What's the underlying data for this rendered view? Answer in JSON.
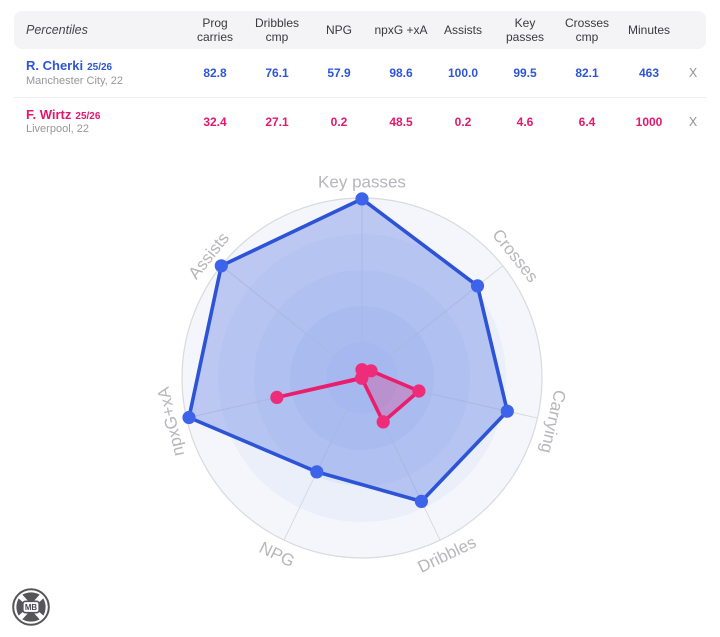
{
  "table": {
    "header": {
      "title": "Percentiles",
      "columns": [
        "Prog carries",
        "Dribbles cmp",
        "NPG",
        "npxG +xA",
        "Assists",
        "Key passes",
        "Crosses cmp",
        "Minutes"
      ]
    },
    "rows": [
      {
        "name": "R. Cherki",
        "season": "25/26",
        "club": "Manchester City, 22",
        "color": "#2e55d7",
        "values": [
          "82.8",
          "76.1",
          "57.9",
          "98.6",
          "100.0",
          "99.5",
          "82.1",
          "463"
        ],
        "remove_label": "X"
      },
      {
        "name": "F. Wirtz",
        "season": "25/26",
        "club": "Liverpool, 22",
        "color": "#e2186f",
        "values": [
          "32.4",
          "27.1",
          "0.2",
          "48.5",
          "0.2",
          "4.6",
          "6.4",
          "1000"
        ],
        "remove_label": "X"
      }
    ]
  },
  "chart_data": {
    "type": "radar",
    "title": "Percentiles radar comparison",
    "categories": [
      "Key passes",
      "Crosses",
      "Carrying",
      "Dribbles",
      "NPG",
      "npxG+xA",
      "Assists"
    ],
    "max": 100,
    "series": [
      {
        "name": "R. Cherki",
        "color": "#2d53d6",
        "point_color": "#3c63ea",
        "fill": "rgba(96,125,229,0.38)",
        "values": [
          99.5,
          82.1,
          82.8,
          76.1,
          57.9,
          98.6,
          100.0
        ]
      },
      {
        "name": "F. Wirtz",
        "color": "#e91e6d",
        "point_color": "#ee2d7a",
        "fill": "rgba(238,45,122,0.28)",
        "values": [
          4.6,
          6.4,
          32.4,
          27.1,
          0.2,
          48.5,
          0.2
        ]
      }
    ],
    "ring_colors": [
      "#f4f6fb",
      "#eaeffa",
      "#dfe8f8",
      "#d7e1f7",
      "#cfdbf6"
    ],
    "grid_color": "#d9dade",
    "label_color": "#b6b6bc",
    "legend_position": "none",
    "grid": "on"
  },
  "logo": {
    "text": "MB"
  }
}
